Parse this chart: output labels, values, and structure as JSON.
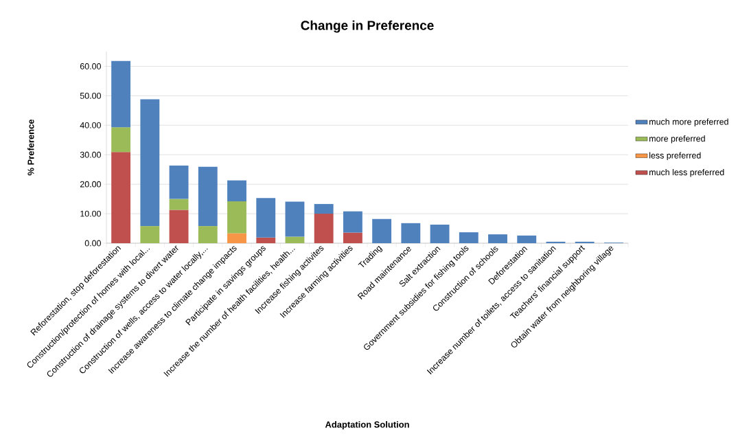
{
  "chart_data": {
    "type": "bar",
    "stacked": true,
    "title": "Change in Preference",
    "xlabel": "Adaptation Solution",
    "ylabel": "% Preference",
    "categories": [
      "Reforestation, stop deforestation",
      "Construction/protection of homes with local...",
      "Construction of drainage systems to divert water",
      "Construction of wells, access to water locally,...",
      "Increase awareness to climate change impacts",
      "Participate in savings groups",
      "Increase the number of health facilities, health...",
      "Increase fishing activites",
      "Increase farming activities",
      "Trading",
      "Road maintenance",
      "Salt extraction",
      "Government subsidies for fishing tools",
      "Construction of schools",
      "Deforestation",
      "Increase number of toilets, access to sanitation",
      "Teachers' financial support",
      "Obtain water from neighboring village"
    ],
    "series": [
      {
        "name": "much less preferred",
        "color": "#c0504d",
        "values": [
          30.9,
          null,
          11.3,
          null,
          null,
          1.9,
          null,
          10.0,
          3.6,
          null,
          null,
          null,
          null,
          null,
          null,
          null,
          null,
          null
        ]
      },
      {
        "name": "less preferred",
        "color": "#f79646",
        "values": [
          null,
          null,
          null,
          null,
          3.4,
          null,
          null,
          null,
          null,
          null,
          null,
          null,
          null,
          null,
          null,
          null,
          null,
          null
        ]
      },
      {
        "name": "more preferred",
        "color": "#9bbb59",
        "values": [
          8.4,
          5.8,
          3.7,
          5.8,
          10.8,
          null,
          2.2,
          null,
          null,
          null,
          null,
          null,
          null,
          null,
          null,
          null,
          null,
          null
        ]
      },
      {
        "name": "much more preferred",
        "color": "#4f81bd",
        "values": [
          22.5,
          43.0,
          11.3,
          20.1,
          7.1,
          13.4,
          11.9,
          3.3,
          7.2,
          8.2,
          6.8,
          6.3,
          3.7,
          3.0,
          2.6,
          0.5,
          0.5,
          0.2
        ]
      }
    ],
    "ylim": [
      0,
      65
    ],
    "yticks": [
      {
        "value": 0,
        "label": "0.00"
      },
      {
        "value": 10,
        "label": "10.00"
      },
      {
        "value": 20,
        "label": "20.00"
      },
      {
        "value": 30,
        "label": "30.00"
      },
      {
        "value": 40,
        "label": "40.00"
      },
      {
        "value": 50,
        "label": "50.00"
      },
      {
        "value": 60,
        "label": "60.00"
      }
    ],
    "grid": "y",
    "legend": "right"
  }
}
